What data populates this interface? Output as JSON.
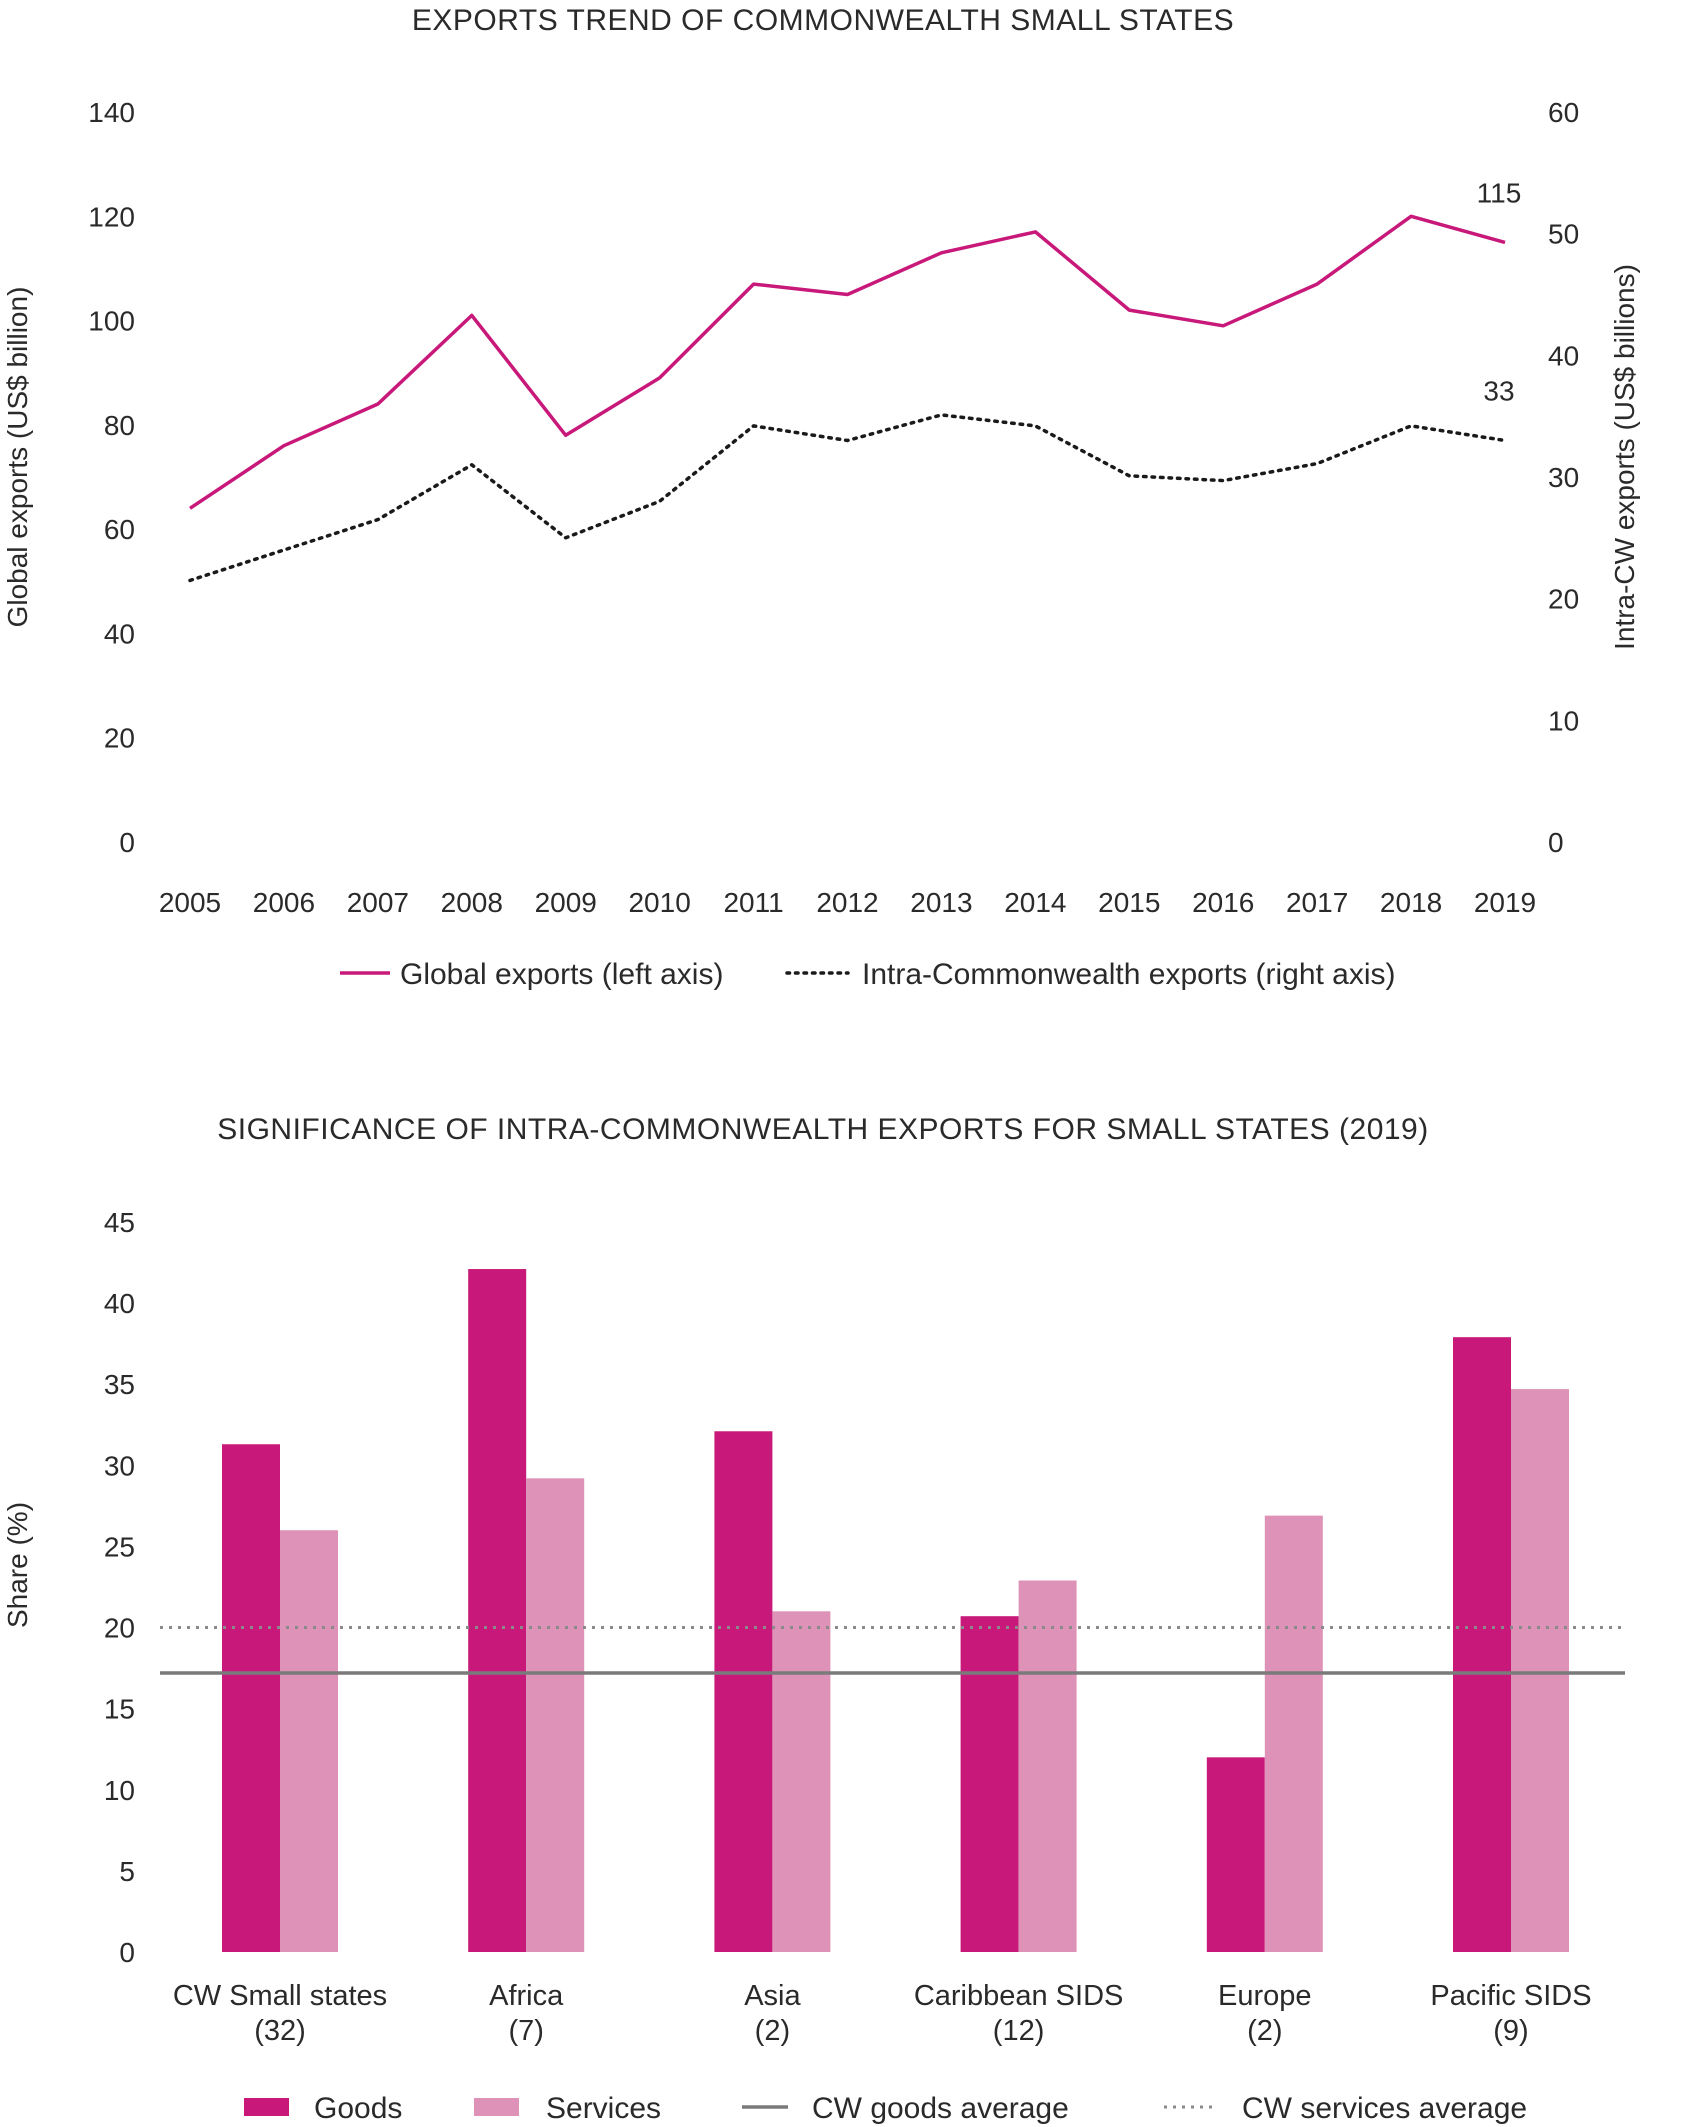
{
  "chart_data": [
    {
      "type": "line",
      "title": "EXPORTS TREND OF COMMONWEALTH SMALL STATES",
      "x": [
        "2005",
        "2006",
        "2007",
        "2008",
        "2009",
        "2010",
        "2011",
        "2012",
        "2013",
        "2014",
        "2015",
        "2016",
        "2017",
        "2018",
        "2019"
      ],
      "ylabel": "Global exports  (US$ billion)",
      "y2label": "Intra-CW exports (US$ billions)",
      "ylim": [
        0,
        140
      ],
      "y2lim": [
        0,
        60
      ],
      "yticks": [
        "0",
        "20",
        "40",
        "60",
        "80",
        "100",
        "120",
        "140"
      ],
      "y2ticks": [
        "0",
        "10",
        "20",
        "30",
        "40",
        "50",
        "60"
      ],
      "grid": false,
      "legend_position": "bottom",
      "series": [
        {
          "name": "Global exports (left axis)",
          "axis": "left",
          "color": "#C8197A",
          "style": "solid",
          "values": [
            64,
            76,
            84,
            101,
            78,
            89,
            107,
            105,
            113,
            117,
            102,
            99,
            107,
            120,
            115
          ],
          "end_label": "115"
        },
        {
          "name": "Intra-Commonwealth exports (right axis)",
          "axis": "right",
          "color": "#1a1a1a",
          "style": "dotted",
          "values": [
            21.5,
            24,
            26.5,
            31,
            25,
            28,
            34.2,
            33,
            35.1,
            34.2,
            30.1,
            29.7,
            31.1,
            34.2,
            33
          ],
          "end_label": "33"
        }
      ]
    },
    {
      "type": "bar",
      "title": "SIGNIFICANCE OF INTRA-COMMONWEALTH EXPORTS FOR SMALL STATES (2019)",
      "categories": [
        {
          "name": "CW Small states",
          "count": "(32)"
        },
        {
          "name": "Africa",
          "count": "(7)"
        },
        {
          "name": "Asia",
          "count": "(2)"
        },
        {
          "name": "Caribbean SIDS",
          "count": "(12)"
        },
        {
          "name": "Europe",
          "count": "(2)"
        },
        {
          "name": "Pacific SIDS",
          "count": "(9)"
        }
      ],
      "ylabel": "Share (%)",
      "ylim": [
        0,
        45
      ],
      "yticks": [
        "0",
        "5",
        "10",
        "15",
        "20",
        "25",
        "30",
        "35",
        "40",
        "45"
      ],
      "grid": false,
      "legend_position": "bottom",
      "series": [
        {
          "name": "Goods",
          "color": "#C8197A",
          "values": [
            31.3,
            42.1,
            32.1,
            20.7,
            12.0,
            37.9
          ]
        },
        {
          "name": "Services",
          "color": "#DE92B7",
          "values": [
            26.0,
            29.2,
            21.0,
            22.9,
            26.9,
            34.7
          ]
        }
      ],
      "reference_lines": [
        {
          "name": "CW goods average",
          "value": 17.2,
          "color": "#7a7a7a",
          "style": "solid"
        },
        {
          "name": "CW services average",
          "value": 20.0,
          "color": "#8a8a8a",
          "style": "dotted"
        }
      ]
    }
  ]
}
